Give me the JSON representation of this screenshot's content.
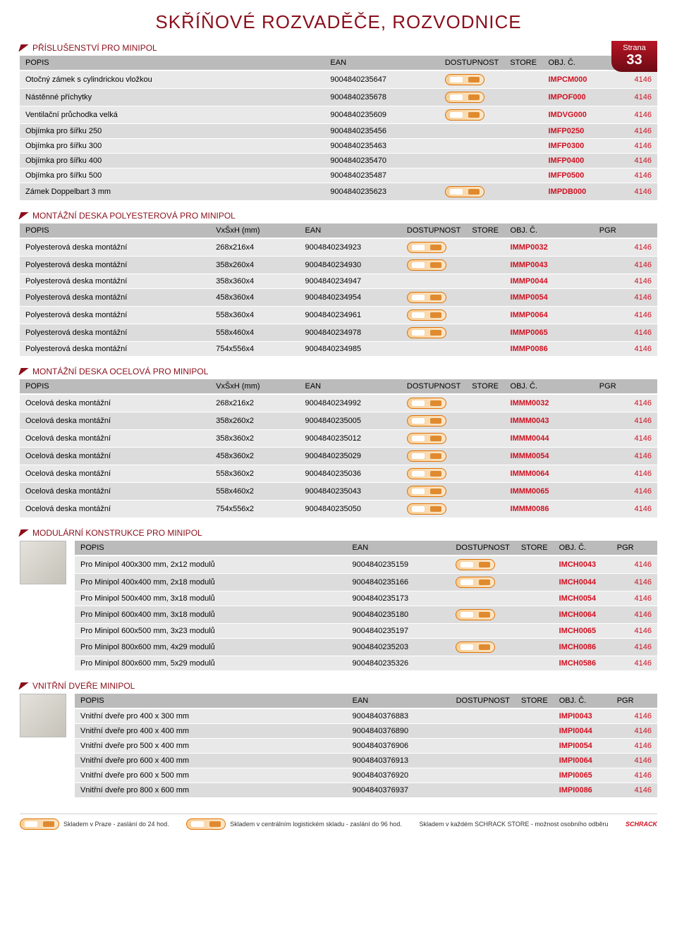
{
  "page": {
    "title": "SKŘÍŇOVÉ ROZVADĚČE, ROZVODNICE",
    "strana_label": "Strana",
    "strana_number": "33"
  },
  "sections": [
    {
      "heading": "PŘÍSLUŠENSTVÍ PRO MINIPOL",
      "hasThumb": false,
      "columns": [
        "POPIS",
        "EAN",
        "DOSTUPNOST",
        "STORE",
        "OBJ. Č.",
        "PGR"
      ],
      "widths": [
        "48%",
        "18%",
        "10%",
        "6%",
        "10%",
        "8%"
      ],
      "rows": [
        [
          "Otočný zámek s cylindrickou vložkou",
          "9004840235647",
          "pill",
          "",
          "IMPCM000",
          "4146"
        ],
        [
          "Nástěnné příchytky",
          "9004840235678",
          "pill",
          "",
          "IMPOF000",
          "4146"
        ],
        [
          "Ventilační průchodka velká",
          "9004840235609",
          "pill",
          "",
          "IMDVG000",
          "4146"
        ],
        [
          "Objímka pro šířku 250",
          "9004840235456",
          "",
          "",
          "IMFP0250",
          "4146"
        ],
        [
          "Objímka pro šířku 300",
          "9004840235463",
          "",
          "",
          "IMFP0300",
          "4146"
        ],
        [
          "Objímka pro šířku 400",
          "9004840235470",
          "",
          "",
          "IMFP0400",
          "4146"
        ],
        [
          "Objímka pro šířku 500",
          "9004840235487",
          "",
          "",
          "IMFP0500",
          "4146"
        ],
        [
          "Zámek Doppelbart 3 mm",
          "9004840235623",
          "pill",
          "",
          "IMPDB000",
          "4146"
        ]
      ]
    },
    {
      "heading": "MONTÁŽNÍ DESKA POLYESTEROVÁ PRO MINIPOL",
      "hasThumb": false,
      "columns": [
        "POPIS",
        "VxŠxH (mm)",
        "EAN",
        "DOSTUPNOST",
        "STORE",
        "OBJ. Č.",
        "PGR"
      ],
      "widths": [
        "30%",
        "14%",
        "16%",
        "10%",
        "6%",
        "14%",
        "10%"
      ],
      "rows": [
        [
          "Polyesterová deska montážní",
          "268x216x4",
          "9004840234923",
          "pill",
          "",
          "IMMP0032",
          "4146"
        ],
        [
          "Polyesterová deska montážní",
          "358x260x4",
          "9004840234930",
          "pill",
          "",
          "IMMP0043",
          "4146"
        ],
        [
          "Polyesterová deska montážní",
          "358x360x4",
          "9004840234947",
          "",
          "",
          "IMMP0044",
          "4146"
        ],
        [
          "Polyesterová deska montážní",
          "458x360x4",
          "9004840234954",
          "pill",
          "",
          "IMMP0054",
          "4146"
        ],
        [
          "Polyesterová deska montážní",
          "558x360x4",
          "9004840234961",
          "pill",
          "",
          "IMMP0064",
          "4146"
        ],
        [
          "Polyesterová deska montážní",
          "558x460x4",
          "9004840234978",
          "pill",
          "",
          "IMMP0065",
          "4146"
        ],
        [
          "Polyesterová deska montážní",
          "754x556x4",
          "9004840234985",
          "",
          "",
          "IMMP0086",
          "4146"
        ]
      ]
    },
    {
      "heading": "MONTÁŽNÍ DESKA OCELOVÁ PRO MINIPOL",
      "hasThumb": false,
      "columns": [
        "POPIS",
        "VxŠxH (mm)",
        "EAN",
        "DOSTUPNOST",
        "STORE",
        "OBJ. Č.",
        "PGR"
      ],
      "widths": [
        "30%",
        "14%",
        "16%",
        "10%",
        "6%",
        "14%",
        "10%"
      ],
      "rows": [
        [
          "Ocelová deska montážní",
          "268x216x2",
          "9004840234992",
          "pill",
          "",
          "IMMM0032",
          "4146"
        ],
        [
          "Ocelová deska montážní",
          "358x260x2",
          "9004840235005",
          "pill",
          "",
          "IMMM0043",
          "4146"
        ],
        [
          "Ocelová deska montážní",
          "358x360x2",
          "9004840235012",
          "pill",
          "",
          "IMMM0044",
          "4146"
        ],
        [
          "Ocelová deska montážní",
          "458x360x2",
          "9004840235029",
          "pill",
          "",
          "IMMM0054",
          "4146"
        ],
        [
          "Ocelová deska montážní",
          "558x360x2",
          "9004840235036",
          "pill",
          "",
          "IMMM0064",
          "4146"
        ],
        [
          "Ocelová deska montážní",
          "558x460x2",
          "9004840235043",
          "pill",
          "",
          "IMMM0065",
          "4146"
        ],
        [
          "Ocelová deska montážní",
          "754x556x2",
          "9004840235050",
          "pill",
          "",
          "IMMM0086",
          "4146"
        ]
      ]
    },
    {
      "heading": "MODULÁRNÍ KONSTRUKCE PRO MINIPOL",
      "hasThumb": true,
      "columns": [
        "POPIS",
        "EAN",
        "DOSTUPNOST",
        "STORE",
        "OBJ. Č.",
        "PGR"
      ],
      "widths": [
        "48%",
        "18%",
        "10%",
        "6%",
        "10%",
        "8%"
      ],
      "rows": [
        [
          "Pro Minipol 400x300 mm, 2x12 modulů",
          "9004840235159",
          "pill",
          "",
          "IMCH0043",
          "4146"
        ],
        [
          "Pro Minipol 400x400 mm, 2x18 modulů",
          "9004840235166",
          "pill",
          "",
          "IMCH0044",
          "4146"
        ],
        [
          "Pro Minipol 500x400 mm, 3x18 modulů",
          "9004840235173",
          "",
          "",
          "IMCH0054",
          "4146"
        ],
        [
          "Pro Minipol 600x400 mm, 3x18 modulů",
          "9004840235180",
          "pill",
          "",
          "IMCH0064",
          "4146"
        ],
        [
          "Pro Minipol 600x500 mm, 3x23 modulů",
          "9004840235197",
          "",
          "",
          "IMCH0065",
          "4146"
        ],
        [
          "Pro Minipol 800x600 mm, 4x29 modulů",
          "9004840235203",
          "pill",
          "",
          "IMCH0086",
          "4146"
        ],
        [
          "Pro Minipol 800x600 mm, 5x29 modulů",
          "9004840235326",
          "",
          "",
          "IMCH0586",
          "4146"
        ]
      ]
    },
    {
      "heading": "VNITŘNÍ DVEŘE MINIPOL",
      "hasThumb": true,
      "columns": [
        "POPIS",
        "EAN",
        "DOSTUPNOST",
        "STORE",
        "OBJ. Č.",
        "PGR"
      ],
      "widths": [
        "48%",
        "18%",
        "10%",
        "6%",
        "10%",
        "8%"
      ],
      "rows": [
        [
          "Vnitřní dveře pro 400 x 300 mm",
          "9004840376883",
          "",
          "",
          "IMPI0043",
          "4146"
        ],
        [
          "Vnitřní dveře pro 400 x 400 mm",
          "9004840376890",
          "",
          "",
          "IMPI0044",
          "4146"
        ],
        [
          "Vnitřní dveře pro 500 x 400 mm",
          "9004840376906",
          "",
          "",
          "IMPI0054",
          "4146"
        ],
        [
          "Vnitřní dveře pro 600 x 400 mm",
          "9004840376913",
          "",
          "",
          "IMPI0064",
          "4146"
        ],
        [
          "Vnitřní dveře pro 600 x 500 mm",
          "9004840376920",
          "",
          "",
          "IMPI0065",
          "4146"
        ],
        [
          "Vnitřní dveře pro 800 x 600 mm",
          "9004840376937",
          "",
          "",
          "IMPI0086",
          "4146"
        ]
      ]
    }
  ],
  "footer": {
    "left": "Skladem v Praze - zaslání do 24 hod.",
    "mid": "Skladem v centrálním logistickém skladu - zaslání do 96 hod.",
    "right": "Skladem v každém SCHRACK STORE - možnost osobního odběru",
    "logo": "SCHRACK"
  }
}
